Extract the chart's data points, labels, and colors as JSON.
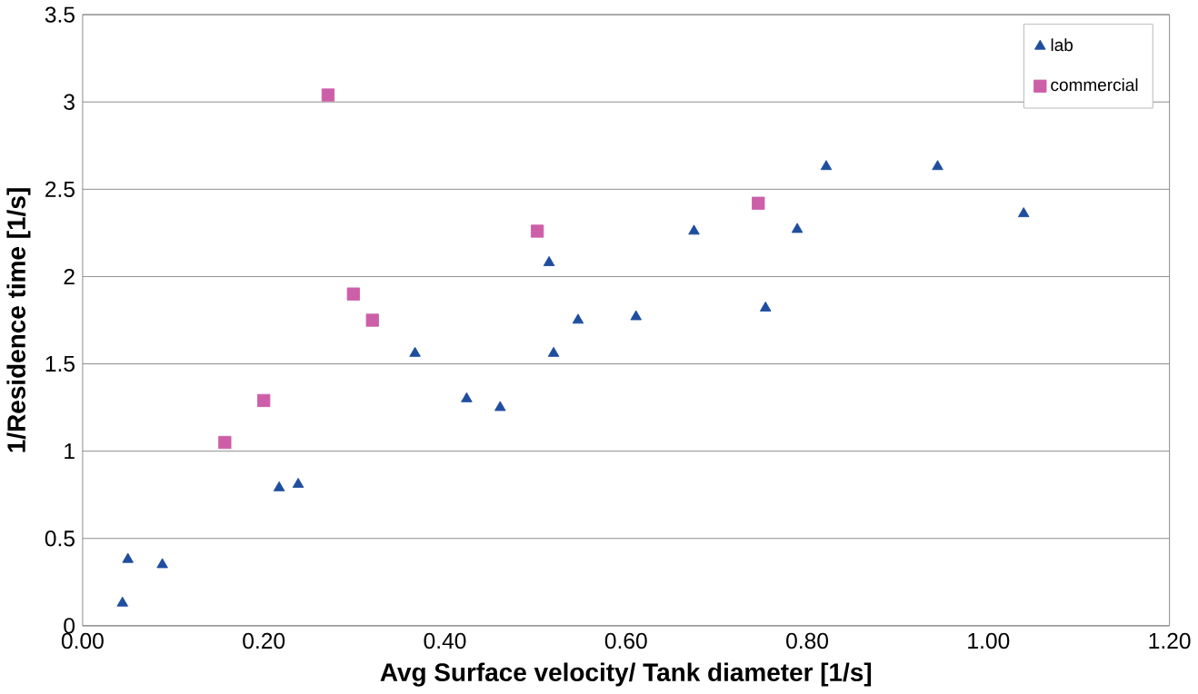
{
  "chart_data": {
    "type": "scatter",
    "xlabel": "Avg Surface velocity/ Tank diameter [1/s]",
    "ylabel": "1/Residence time  [1/s]",
    "xlim": [
      0,
      1.2
    ],
    "ylim": [
      0,
      3.5
    ],
    "xticks": [
      {
        "value": 0,
        "label": "0.00"
      },
      {
        "value": 0.2,
        "label": "0.20"
      },
      {
        "value": 0.4,
        "label": "0.40"
      },
      {
        "value": 0.6,
        "label": "0.60"
      },
      {
        "value": 0.8,
        "label": "0.80"
      },
      {
        "value": 1.0,
        "label": "1.00"
      },
      {
        "value": 1.2,
        "label": "1.20"
      }
    ],
    "yticks": [
      0,
      0.5,
      1,
      1.5,
      2,
      2.5,
      3,
      3.5
    ],
    "grid": "y",
    "legend": "top right",
    "series": [
      {
        "name": "lab",
        "color": "#1f4e9e",
        "marker": "triangle",
        "x": [
          0.044,
          0.05,
          0.088,
          0.217,
          0.238,
          0.367,
          0.424,
          0.461,
          0.515,
          0.52,
          0.547,
          0.611,
          0.675,
          0.754,
          0.789,
          0.821,
          0.944,
          1.039
        ],
        "values": [
          0.13,
          0.38,
          0.35,
          0.79,
          0.81,
          1.56,
          1.3,
          1.25,
          2.08,
          1.56,
          1.75,
          1.77,
          2.26,
          1.82,
          2.27,
          2.63,
          2.63,
          2.36
        ]
      },
      {
        "name": "commercial",
        "color": "#cc5fa8",
        "marker": "square",
        "x": [
          0.157,
          0.2,
          0.271,
          0.299,
          0.32,
          0.502,
          0.746
        ],
        "values": [
          1.05,
          1.29,
          3.04,
          1.9,
          1.75,
          2.26,
          2.42
        ]
      }
    ]
  }
}
